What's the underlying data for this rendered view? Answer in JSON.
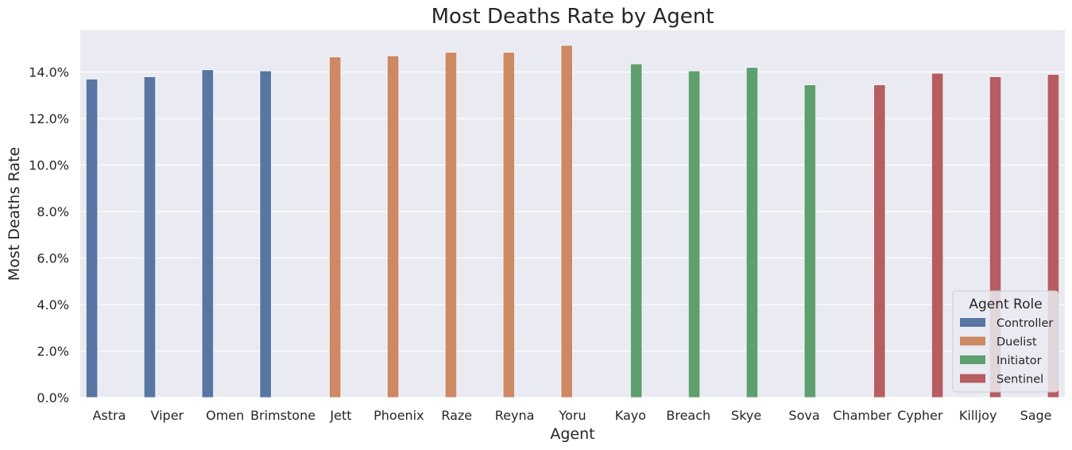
{
  "chart_data": {
    "type": "bar",
    "title": "Most Deaths Rate by Agent",
    "xlabel": "Agent",
    "ylabel": "Most Deaths Rate",
    "ylim": [
      0,
      15.8
    ],
    "yticks": [
      0,
      2,
      4,
      6,
      8,
      10,
      12,
      14
    ],
    "ytick_labels": [
      "0.0%",
      "2.0%",
      "4.0%",
      "6.0%",
      "8.0%",
      "10.0%",
      "12.0%",
      "14.0%"
    ],
    "grid": true,
    "legend": {
      "title": "Agent Role",
      "placement": "bottom-right"
    },
    "categories": [
      "Astra",
      "Viper",
      "Omen",
      "Brimstone",
      "Jett",
      "Phoenix",
      "Raze",
      "Reyna",
      "Yoru",
      "Kayo",
      "Breach",
      "Skye",
      "Sova",
      "Chamber",
      "Cypher",
      "Killjoy",
      "Sage"
    ],
    "series": [
      {
        "name": "Controller",
        "color": "#5875a4",
        "values": [
          13.7,
          13.8,
          14.1,
          14.05,
          null,
          null,
          null,
          null,
          null,
          null,
          null,
          null,
          null,
          null,
          null,
          null,
          null
        ]
      },
      {
        "name": "Duelist",
        "color": "#cc8963",
        "values": [
          null,
          null,
          null,
          null,
          14.65,
          14.7,
          14.85,
          14.85,
          15.15,
          null,
          null,
          null,
          null,
          null,
          null,
          null,
          null
        ]
      },
      {
        "name": "Initiator",
        "color": "#5f9e6e",
        "values": [
          null,
          null,
          null,
          null,
          null,
          null,
          null,
          null,
          null,
          14.35,
          14.05,
          14.2,
          13.45,
          null,
          null,
          null,
          null
        ]
      },
      {
        "name": "Sentinel",
        "color": "#b55d60",
        "values": [
          null,
          null,
          null,
          null,
          null,
          null,
          null,
          null,
          null,
          null,
          null,
          null,
          null,
          13.45,
          13.95,
          13.8,
          13.9
        ]
      }
    ]
  }
}
